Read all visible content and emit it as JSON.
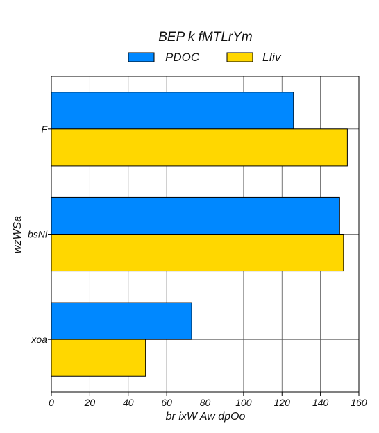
{
  "chart_data": {
    "type": "bar",
    "orientation": "horizontal",
    "title": "BEP  k fMTLrYm",
    "xlabel": "br ixW Aw dpOo",
    "ylabel": "wzWSa",
    "categories": [
      "F",
      "bsNl",
      "xoa"
    ],
    "xlim": [
      0,
      160
    ],
    "xticks": [
      0,
      20,
      40,
      60,
      80,
      100,
      120,
      140,
      160
    ],
    "grid": true,
    "legend_position": "top",
    "series": [
      {
        "name": "PDOC",
        "color": "#0088FF",
        "values": [
          126,
          150,
          73
        ]
      },
      {
        "name": "LIiv",
        "color": "#FFD700",
        "values": [
          154,
          152,
          49
        ]
      }
    ]
  }
}
